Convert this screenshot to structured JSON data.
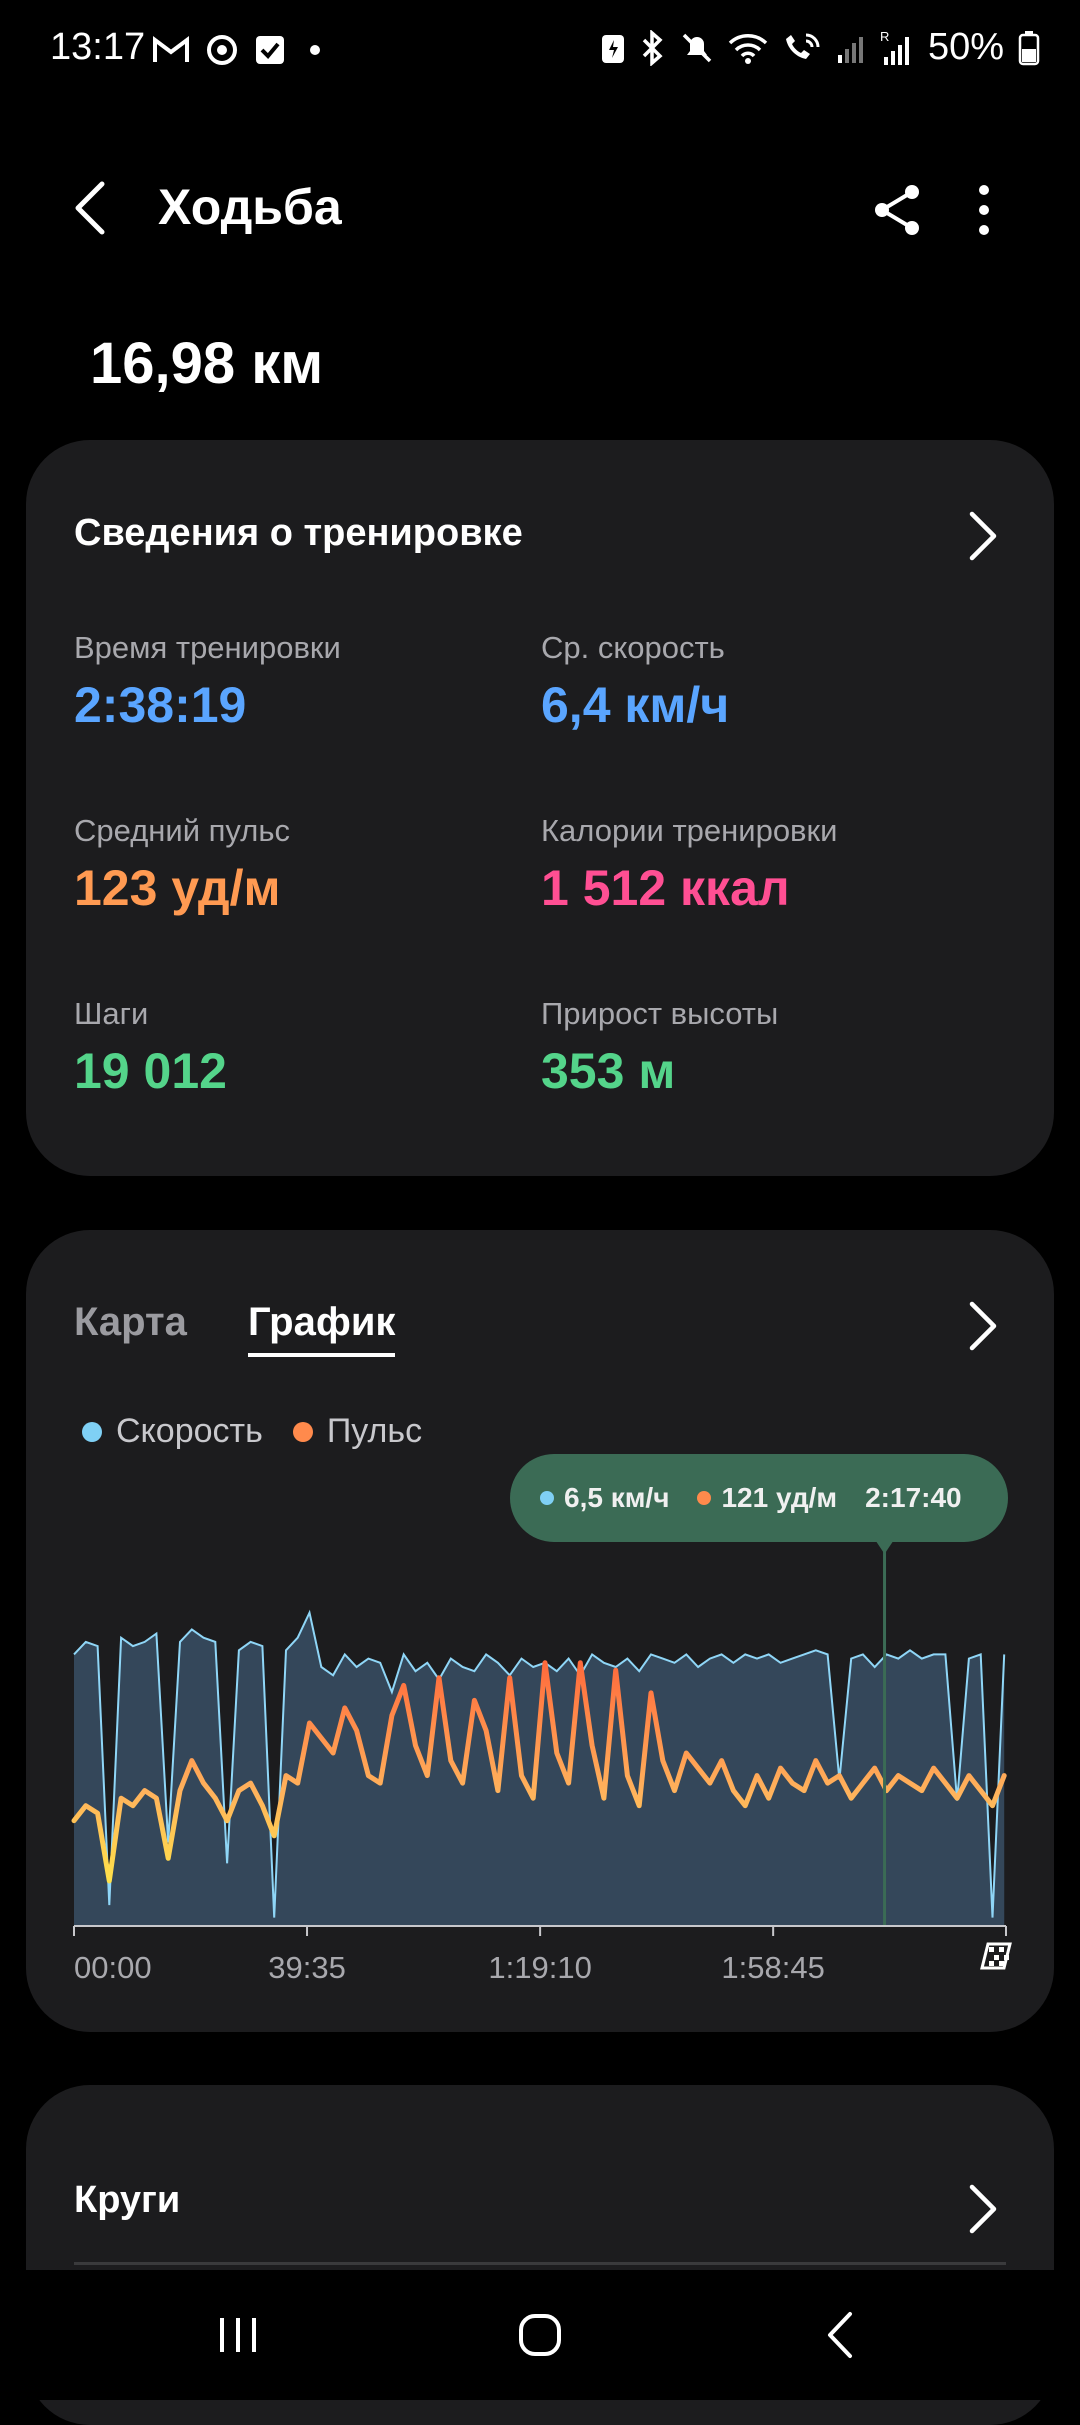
{
  "status_bar": {
    "time": "13:17",
    "left_icons": [
      "gmail-icon",
      "sync-icon",
      "tasks-icon",
      "dot-icon"
    ],
    "right_icons": [
      "battery-saver-icon",
      "bluetooth-icon",
      "mute-icon",
      "wifi-icon",
      "wifi-calling-icon",
      "signal-icon",
      "roaming-signal-icon",
      "battery-icon"
    ],
    "battery": "50%"
  },
  "header": {
    "title": "Ходьба"
  },
  "summary": {
    "distance": "16,98 км"
  },
  "workout_card": {
    "title": "Сведения о тренировке",
    "stats": [
      {
        "label": "Время тренировки",
        "value": "2:38:19",
        "color": "#5aa5ff"
      },
      {
        "label": "Ср. скорость",
        "value": "6,4 км/ч",
        "color": "#5aa5ff"
      },
      {
        "label": "Средний пульс",
        "value": "123 уд/м",
        "color": "#ff9a52"
      },
      {
        "label": "Калории тренировки",
        "value": "1 512 ккал",
        "color": "#ff4f93"
      },
      {
        "label": "Шаги",
        "value": "19 012",
        "color": "#54d48a"
      },
      {
        "label": "Прирост высоты",
        "value": "353 м",
        "color": "#54d48a"
      }
    ]
  },
  "graph_card": {
    "tabs": [
      {
        "label": "Карта",
        "active": false
      },
      {
        "label": "График",
        "active": true
      }
    ],
    "legend": [
      {
        "label": "Скорость",
        "color": "#7fd0f5"
      },
      {
        "label": "Пульс",
        "color": "#ff8a4c"
      }
    ],
    "tooltip": {
      "speed": "6,5 км/ч",
      "pulse": "121 уд/м",
      "time": "2:17:40"
    },
    "x_ticks": [
      "00:00",
      "39:35",
      "1:19:10",
      "1:58:45"
    ],
    "finish_icon": "finish-flag-icon"
  },
  "chart_data": {
    "type": "area",
    "x_ticks": [
      "00:00",
      "39:35",
      "1:19:10",
      "1:58:45"
    ],
    "series": [
      {
        "name": "Скорость",
        "unit": "км/ч",
        "color": "#7fd0f5",
        "x_minutes": [
          0,
          2,
          4,
          6,
          8,
          10,
          12,
          14,
          16,
          18,
          20,
          22,
          24,
          26,
          28,
          30,
          32,
          34,
          36,
          38,
          40,
          42,
          44,
          46,
          48,
          50,
          52,
          54,
          56,
          58,
          60,
          62,
          64,
          66,
          68,
          70,
          72,
          74,
          76,
          78,
          80,
          82,
          84,
          86,
          88,
          90,
          92,
          94,
          96,
          98,
          100,
          102,
          104,
          106,
          108,
          110,
          112,
          114,
          116,
          118,
          120,
          122,
          124,
          126,
          128,
          130,
          132,
          134,
          136,
          138,
          140,
          142,
          144,
          146,
          148,
          150,
          152,
          154,
          156,
          158
        ],
        "values": [
          6.5,
          6.8,
          6.7,
          0.5,
          6.9,
          6.7,
          6.8,
          7.0,
          2.0,
          6.8,
          7.1,
          6.9,
          6.8,
          1.5,
          6.6,
          6.8,
          6.7,
          0.2,
          6.6,
          6.9,
          7.5,
          6.2,
          6.0,
          6.5,
          6.2,
          6.4,
          6.3,
          5.6,
          6.5,
          6.1,
          6.3,
          5.9,
          6.4,
          6.2,
          6.1,
          6.5,
          6.3,
          6.0,
          6.4,
          6.2,
          6.3,
          6.1,
          6.4,
          6.0,
          6.5,
          6.3,
          6.2,
          6.4,
          6.1,
          6.5,
          6.4,
          6.3,
          6.5,
          6.2,
          6.4,
          6.5,
          6.3,
          6.5,
          6.4,
          6.5,
          6.3,
          6.4,
          6.5,
          6.6,
          6.5,
          3.5,
          6.4,
          6.5,
          6.2,
          6.5,
          6.4,
          6.6,
          6.4,
          6.5,
          6.5,
          3.0,
          6.4,
          6.5,
          0.2,
          6.5
        ]
      },
      {
        "name": "Пульс",
        "unit": "уд/м",
        "color": "#ff8a4c",
        "x_minutes": [
          0,
          2,
          4,
          6,
          8,
          10,
          12,
          14,
          16,
          18,
          20,
          22,
          24,
          26,
          28,
          30,
          32,
          34,
          36,
          38,
          40,
          42,
          44,
          46,
          48,
          50,
          52,
          54,
          56,
          58,
          60,
          62,
          64,
          66,
          68,
          70,
          72,
          74,
          76,
          78,
          80,
          82,
          84,
          86,
          88,
          90,
          92,
          94,
          96,
          98,
          100,
          102,
          104,
          106,
          108,
          110,
          112,
          114,
          116,
          118,
          120,
          122,
          124,
          126,
          128,
          130,
          132,
          134,
          136,
          138,
          140,
          142,
          144,
          146,
          148,
          150,
          152,
          154,
          156,
          158
        ],
        "values": [
          108,
          112,
          110,
          92,
          114,
          112,
          116,
          114,
          98,
          116,
          124,
          118,
          114,
          108,
          116,
          118,
          112,
          104,
          120,
          118,
          134,
          130,
          126,
          138,
          132,
          120,
          118,
          136,
          144,
          128,
          120,
          146,
          124,
          118,
          140,
          132,
          116,
          146,
          120,
          114,
          150,
          126,
          118,
          150,
          128,
          114,
          148,
          120,
          112,
          142,
          124,
          116,
          126,
          122,
          118,
          124,
          116,
          112,
          120,
          114,
          122,
          118,
          116,
          124,
          118,
          120,
          114,
          118,
          122,
          116,
          120,
          118,
          116,
          122,
          118,
          114,
          120,
          116,
          112,
          120
        ]
      }
    ],
    "tooltip_at": "2:17:40"
  },
  "laps_card": {
    "title": "Круги"
  },
  "nav_bar": {
    "buttons": [
      "recents-icon",
      "home-icon",
      "back-icon"
    ]
  }
}
